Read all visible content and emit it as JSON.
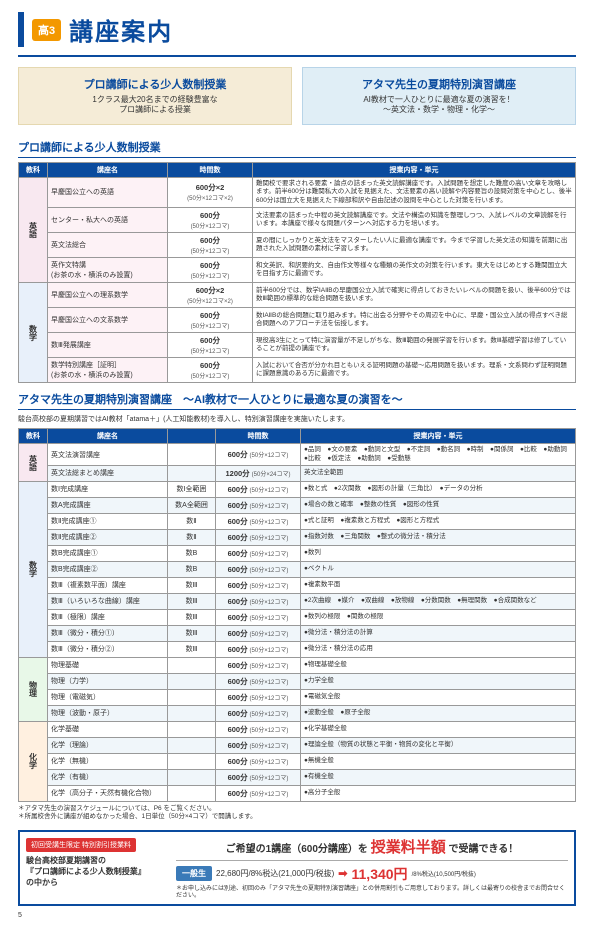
{
  "header": {
    "grade": "高3",
    "title": "講座案内"
  },
  "boxes": {
    "left": {
      "title": "プロ講師による少人数制授業",
      "line1": "1クラス最大20名までの経験豊富な",
      "line2": "プロ講師による授業"
    },
    "right": {
      "title": "アタマ先生の夏期特別演習講座",
      "line1": "AI教材で一人ひとりに最適な夏の演習を！",
      "line2": "～英文法・数学・物理・化学～"
    }
  },
  "section1": {
    "title": "プロ講師による少人数制授業",
    "headers": [
      "教科",
      "講座名",
      "時間数",
      "授業内容・単元"
    ],
    "groups": [
      {
        "subject": "英語",
        "rows": [
          {
            "name": "早慶国公立への英語",
            "time": "600分×2",
            "sub": "(50分×12コマ×2)",
            "desc": "難関校で要求される要素・論点の詰まった英文読解講座です。入試問題を想定した難度の高い文章を攻略します。前半600分は難関私大の入試を見据えた、文法要素の高い読解や内容要旨の設問対策を中心とし、後半600分は国立大を見据えた下線部和訳や自由記述の設問を中心とした対策を行います。"
          },
          {
            "name": "センター・私大への英語",
            "time": "600分",
            "sub": "(50分×12コマ)",
            "desc": "文法要素の詰まった中程の英文読解講座です。文法や構造の知識を整理しつつ、入試レベルの文章読解を行います。本講座で様々な問題パターンへ対応する力を培います。"
          },
          {
            "name": "英文法総合",
            "time": "600分",
            "sub": "(50分×12コマ)",
            "desc": "夏の間にしっかりと英文法をマスターしたい人に最適な講座です。今まで学習した英文法の知識を前期に出題された入試問題の素材に学習します。"
          },
          {
            "name": "英作文特講\n(お茶の水・横浜のみ設置)",
            "time": "600分",
            "sub": "(50分×12コマ)",
            "desc": "和文英訳、和訳要約文、自由作文等様々な種類の英作文の対策を行います。東大をはじめとする難関国立大を目指す方に最適です。"
          }
        ]
      },
      {
        "subject": "数学",
        "rows": [
          {
            "name": "早慶国公立への理系数学",
            "time": "600分×2",
            "sub": "(50分×12コマ×2)",
            "desc": "前半600分では、数学ⅠAⅡBの早慶国公立入試で確実に得点しておきたいレベルの問題を扱い、後半600分では数Ⅲ範囲の標準的な総合問題を扱います。"
          },
          {
            "name": "早慶国公立への文系数学",
            "time": "600分",
            "sub": "(50分×12コマ)",
            "desc": "数ⅠAⅡBの総合問題に取り組みます。特に出会る分野やその周辺を中心に、早慶・国公立入試の得点すべき総合問題へのアプローチ法を伝授します。"
          },
          {
            "name": "数Ⅲ発展講座",
            "time": "600分",
            "sub": "(50分×12コマ)",
            "desc": "現役高3生にとって特に演習量が不足しがちな、数Ⅲ範囲の発展学習を行います。数Ⅲ基礎学習は修了していることが前提の講座です。"
          },
          {
            "name": "数学特別講座［証明］\n(お茶の水・横浜のみ設置)",
            "time": "600分",
            "sub": "(50分×12コマ)",
            "desc": "入試において合否が分かれ目ともいえる証明問題の基礎～応用問題を扱います。理系・文系問わず証明問題に課題意識のある方に最適です。"
          }
        ]
      }
    ]
  },
  "section2": {
    "title": "アタマ先生の夏期特別演習講座　～AI教材で一人ひとりに最適な夏の演習を～",
    "note": "駿台高校部の夏期講習ではAI教材「atama＋」(人工知能教材)を導入し、特別演習講座を実施いたします。",
    "headers": [
      "教科",
      "講座名",
      "",
      "時間数",
      "授業内容・単元"
    ],
    "groups": [
      {
        "subject": "英語",
        "rows": [
          {
            "name": "英文法演習講座",
            "level": "",
            "time": "600分",
            "sub": "(50分×12コマ)",
            "desc": "●品詞　●文の要素　●動詞と文型　●不定詞　●動名詞　●時制　●関係詞　●比較　●助動詞　●比較　●仮定法　●助動詞　●受動態"
          },
          {
            "name": "英文法総まとめ講座",
            "level": "",
            "time": "1200分",
            "sub": "(50分×24コマ)",
            "desc": "英文法全範囲"
          }
        ]
      },
      {
        "subject": "数学",
        "rows": [
          {
            "name": "数Ⅰ完成講座",
            "level": "数Ⅰ全範囲",
            "time": "600分",
            "sub": "(50分×12コマ)",
            "desc": "●数と式　●2次関数　●図形の計量（三角比）　●データの分析"
          },
          {
            "name": "数A完成講座",
            "level": "数A全範囲",
            "time": "600分",
            "sub": "(50分×12コマ)",
            "desc": "●場合の数と確率　●整数の性質　●図形の性質"
          },
          {
            "name": "数Ⅱ完成講座①",
            "level": "数Ⅱ",
            "time": "600分",
            "sub": "(50分×12コマ)",
            "desc": "●式と証明　●複素数と方程式　●図形と方程式"
          },
          {
            "name": "数Ⅱ完成講座②",
            "level": "数Ⅱ",
            "time": "600分",
            "sub": "(50分×12コマ)",
            "desc": "●指数対数　●三角関数　●整式の微分法・積分法"
          },
          {
            "name": "数B完成講座①",
            "level": "数B",
            "time": "600分",
            "sub": "(50分×12コマ)",
            "desc": "●数列"
          },
          {
            "name": "数B完成講座②",
            "level": "数B",
            "time": "600分",
            "sub": "(50分×12コマ)",
            "desc": "●ベクトル"
          },
          {
            "name": "数Ⅲ（複素数平面）講座",
            "level": "数Ⅲ",
            "time": "600分",
            "sub": "(50分×12コマ)",
            "desc": "●複素数平面"
          },
          {
            "name": "数Ⅲ（いろいろな曲線）講座",
            "level": "数Ⅲ",
            "time": "600分",
            "sub": "(50分×12コマ)",
            "desc": "●2次曲線　●媒介　●双曲線　●放物線　●分数関数　●無理関数　●合成関数など"
          },
          {
            "name": "数Ⅲ（極限）講座",
            "level": "数Ⅲ",
            "time": "600分",
            "sub": "(50分×12コマ)",
            "desc": "●数列の極限　●関数の極限"
          },
          {
            "name": "数Ⅲ（微分・積分①）",
            "level": "数Ⅲ",
            "time": "600分",
            "sub": "(50分×12コマ)",
            "desc": "●微分法・積分法の計算"
          },
          {
            "name": "数Ⅲ（微分・積分②）",
            "level": "数Ⅲ",
            "time": "600分",
            "sub": "(50分×12コマ)",
            "desc": "●微分法・積分法の応用"
          }
        ]
      },
      {
        "subject": "物理",
        "rows": [
          {
            "name": "物理基礎",
            "level": "",
            "time": "600分",
            "sub": "(50分×12コマ)",
            "desc": "●物理基礎全般"
          },
          {
            "name": "物理（力学）",
            "level": "",
            "time": "600分",
            "sub": "(50分×12コマ)",
            "desc": "●力学全般"
          },
          {
            "name": "物理（電磁気）",
            "level": "",
            "time": "600分",
            "sub": "(50分×12コマ)",
            "desc": "●電磁気全般"
          },
          {
            "name": "物理（波動・原子）",
            "level": "",
            "time": "600分",
            "sub": "(50分×12コマ)",
            "desc": "●波動全般　●原子全般"
          }
        ]
      },
      {
        "subject": "化学",
        "rows": [
          {
            "name": "化学基礎",
            "level": "",
            "time": "600分",
            "sub": "(50分×12コマ)",
            "desc": "●化学基礎全般"
          },
          {
            "name": "化学（理論）",
            "level": "",
            "time": "600分",
            "sub": "(50分×12コマ)",
            "desc": "●理論全般（物質の状態と平衡・物質の変化と平衡）"
          },
          {
            "name": "化学（無機）",
            "level": "",
            "time": "600分",
            "sub": "(50分×12コマ)",
            "desc": "●無機全般"
          },
          {
            "name": "化学（有機）",
            "level": "",
            "time": "600分",
            "sub": "(50分×12コマ)",
            "desc": "●有機全般"
          },
          {
            "name": "化学（高分子・天然有機化合物）",
            "level": "",
            "time": "600分",
            "sub": "(50分×12コマ)",
            "desc": "●高分子全般"
          }
        ]
      }
    ],
    "foot1": "＊アタマ先生の演習スケジュールについては、P6 をご覧ください。",
    "foot2": "＊所属校舎外に講座が組めなかった場合、1日単位（50分×4コマ）で開講します。"
  },
  "promo": {
    "badge": "初回受講生限定 特別割引授業料",
    "left1": "駿台高校部夏期講習の",
    "left2": "『プロ講師による少人数制授業』",
    "left3": "の中から",
    "headline1": "ご希望の1講座（600分講座）を",
    "headline2": "授業料半額",
    "headline3": "で受講できる！",
    "tag": "一般生",
    "old": "22,680円/8%税込(21,000円/税抜)",
    "new": "11,340円",
    "newnote": "/8%税込(10,500円/税抜)",
    "foot": "＊お申し込みには別途、初回のみ「アタマ先生の夏期特別演習講座」との併用割引もご用意しております。詳しくは最寄りの校舎までお問合せください。"
  },
  "page": "5"
}
